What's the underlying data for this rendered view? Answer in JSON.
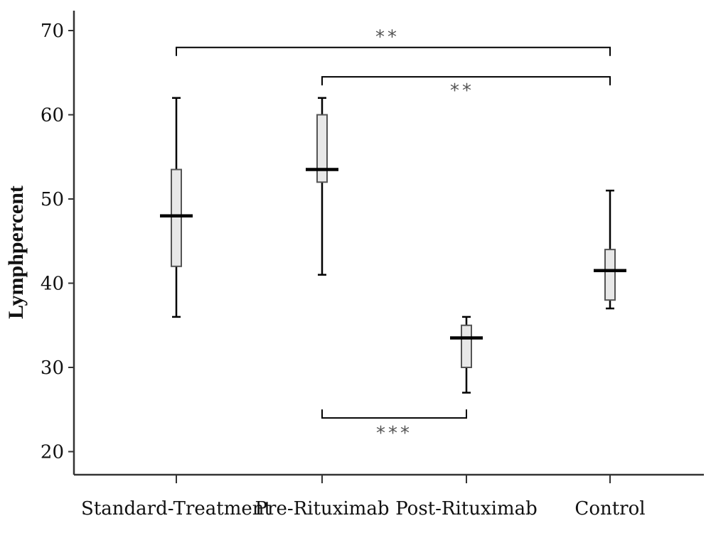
{
  "chart_data": {
    "type": "boxplot",
    "ylabel": "Lymphpercent",
    "xlabel": "",
    "ylim": [
      17,
      72
    ],
    "yticks": [
      20,
      30,
      40,
      50,
      60,
      70
    ],
    "categories": [
      "Standard-Treatment",
      "Pre-Rituximab",
      "Post-Rituximab",
      "Control"
    ],
    "boxes": [
      {
        "min": 36,
        "q1": 42,
        "median": 48,
        "q3": 53.5,
        "max": 62
      },
      {
        "min": 41,
        "q1": 52,
        "median": 53.5,
        "q3": 60,
        "max": 62
      },
      {
        "min": 27,
        "q1": 30,
        "median": 33.5,
        "q3": 35,
        "max": 36
      },
      {
        "min": 37,
        "q1": 38,
        "median": 41.5,
        "q3": 44,
        "max": 51
      }
    ],
    "significance": [
      {
        "from": 0,
        "to": 3,
        "label": "**",
        "y": 68,
        "direction": "down"
      },
      {
        "from": 1,
        "to": 3,
        "label": "**",
        "y": 64.5,
        "direction": "down"
      },
      {
        "from": 1,
        "to": 2,
        "label": "***",
        "y": 24,
        "direction": "up"
      }
    ]
  }
}
